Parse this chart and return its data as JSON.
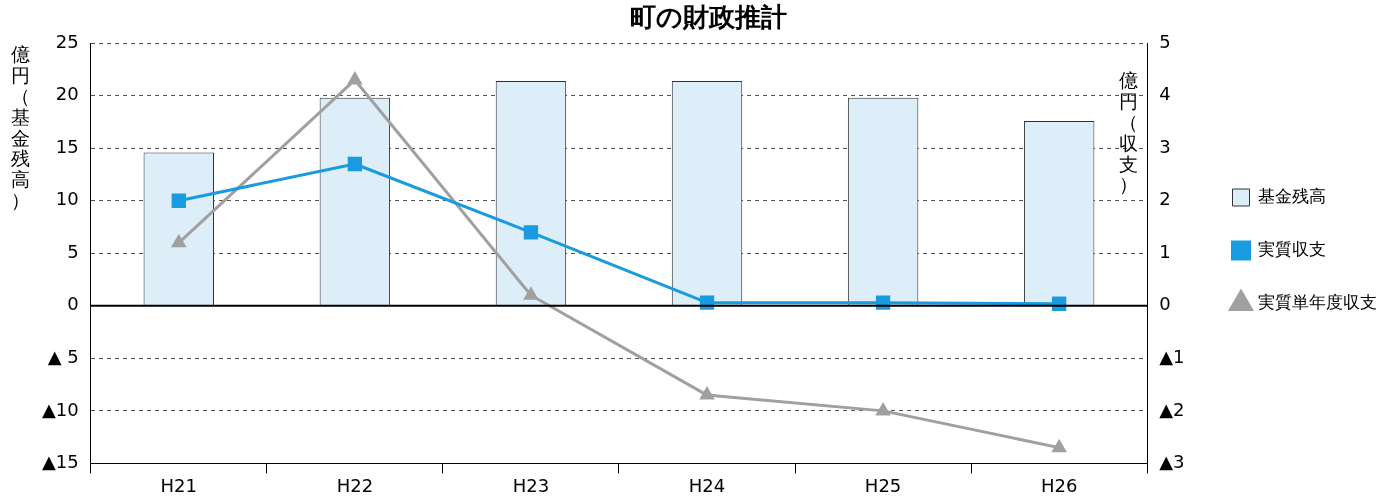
{
  "chart_data": {
    "type": "bar",
    "title": "町の財政推計",
    "ylabel": "億円（基金残高）",
    "y2label": "億円（収支）",
    "categories": [
      "H21",
      "H22",
      "H23",
      "H24",
      "H25",
      "H26"
    ],
    "series": [
      {
        "name": "基金残高",
        "color": "#ddeef9",
        "values": [
          14.6,
          19.8,
          21.4,
          21.4,
          19.8,
          17.6
        ]
      },
      {
        "name": "実質収支",
        "type": "line",
        "axis": "y2",
        "color": "#1a9be0",
        "marker": "square",
        "values": [
          2.0,
          2.7,
          1.4,
          0.06,
          0.06,
          0.04
        ]
      },
      {
        "name": "実質単年度収支",
        "type": "line",
        "axis": "y2",
        "color": "#a0a0a0",
        "marker": "triangle",
        "values": [
          1.2,
          4.3,
          0.2,
          -1.7,
          -2.0,
          -2.7
        ]
      }
    ],
    "ylim": [
      -15,
      25
    ],
    "yticks": [
      {
        "value": -15,
        "label": "▲15"
      },
      {
        "value": -10,
        "label": "▲10"
      },
      {
        "value": -5,
        "label": "▲ 5"
      },
      0,
      5,
      10,
      15,
      20,
      25
    ],
    "y2lim": [
      -3,
      5
    ],
    "y2ticks": [
      {
        "value": -3,
        "label": "▲3"
      },
      {
        "value": -2,
        "label": "▲2"
      },
      {
        "value": -1,
        "label": "▲1"
      },
      0,
      1,
      2,
      3,
      4,
      5
    ],
    "grid": "y",
    "legend": "right"
  }
}
